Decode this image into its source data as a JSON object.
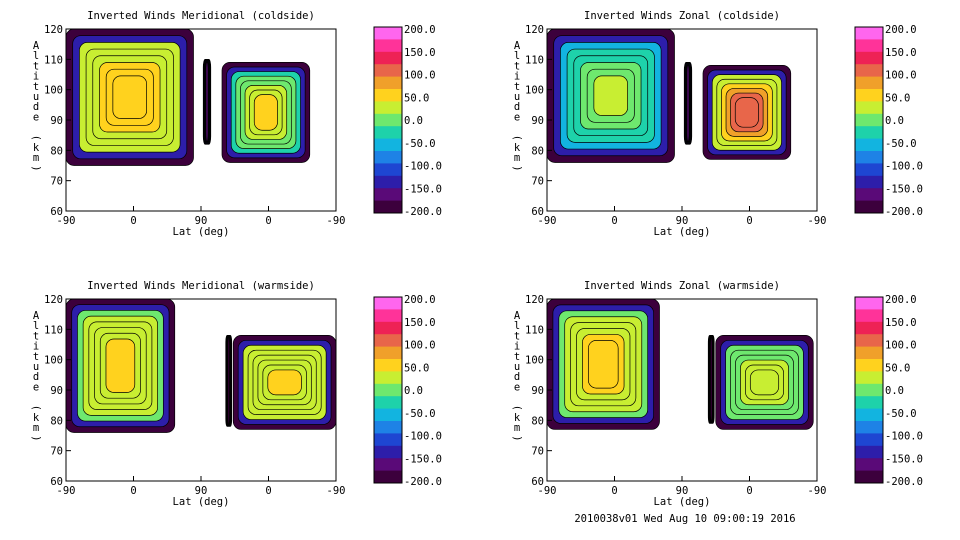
{
  "footer": "2010038v01 Wed Aug 10 09:00:19 2016",
  "colorbar": {
    "ticks": [
      "200.0",
      "150.0",
      "100.0",
      "50.0",
      "0.0",
      "-50.0",
      "-100.0",
      "-150.0",
      "-200.0"
    ],
    "colors": [
      "#ff66ee",
      "#ff3399",
      "#ee2255",
      "#e8664a",
      "#f0a02a",
      "#ffd21e",
      "#c8ee32",
      "#6ee86e",
      "#1ed2aa",
      "#12b4e0",
      "#1e82e6",
      "#1e46d2",
      "#2d1eaa",
      "#5a0a78",
      "#3c003c"
    ]
  },
  "chart_data": [
    {
      "type": "heatmap",
      "title": "Inverted Winds Meridional (coldside)",
      "xlabel": "Lat (deg)",
      "ylabel": "Altitude (km)",
      "xticks": [
        "-90",
        "0",
        "90",
        "0",
        "-90"
      ],
      "yticks": [
        "120",
        "110",
        "100",
        "90",
        "80",
        "70",
        "60"
      ],
      "ylim": [
        60,
        120
      ],
      "zlim": [
        -200,
        200
      ],
      "regions": [
        {
          "x": [
            -90,
            80
          ],
          "y": [
            75,
            120
          ],
          "fill": 20,
          "feature": 60
        },
        {
          "x": [
            93,
            103
          ],
          "y": [
            82,
            110
          ],
          "fill": -120,
          "feature": -160
        },
        {
          "x": [
            118,
            235
          ],
          "y": [
            76,
            109
          ],
          "fill": -40,
          "feature": 60
        }
      ]
    },
    {
      "type": "heatmap",
      "title": "Inverted Winds Zonal (coldside)",
      "xlabel": "Lat (deg)",
      "ylabel": "Altitude (km)",
      "xticks": [
        "-90",
        "0",
        "90",
        "0",
        "-90"
      ],
      "yticks": [
        "120",
        "110",
        "100",
        "90",
        "80",
        "70",
        "60"
      ],
      "ylim": [
        60,
        120
      ],
      "zlim": [
        -200,
        200
      ],
      "regions": [
        {
          "x": [
            -90,
            80
          ],
          "y": [
            76,
            120
          ],
          "fill": -70,
          "feature": 40
        },
        {
          "x": [
            93,
            103
          ],
          "y": [
            82,
            109
          ],
          "fill": -110,
          "feature": -160
        },
        {
          "x": [
            118,
            235
          ],
          "y": [
            77,
            108
          ],
          "fill": -20,
          "feature": 140
        }
      ]
    },
    {
      "type": "heatmap",
      "title": "Inverted Winds Meridional (warmside)",
      "xlabel": "Lat (deg)",
      "ylabel": "Altitude (km)",
      "xticks": [
        "-90",
        "0",
        "90",
        "0",
        "-90"
      ],
      "yticks": [
        "120",
        "110",
        "100",
        "90",
        "80",
        "70",
        "60"
      ],
      "ylim": [
        60,
        120
      ],
      "zlim": [
        -200,
        200
      ],
      "regions": [
        {
          "x": [
            -90,
            55
          ],
          "y": [
            76,
            120
          ],
          "fill": 0,
          "feature": 50
        },
        {
          "x": [
            123,
            131
          ],
          "y": [
            78,
            108
          ],
          "fill": -170,
          "feature": -200
        },
        {
          "x": [
            133,
            270
          ],
          "y": [
            77,
            108
          ],
          "fill": 10,
          "feature": 50
        }
      ]
    },
    {
      "type": "heatmap",
      "title": "Inverted Winds Zonal (warmside)",
      "xlabel": "Lat (deg)",
      "ylabel": "Altitude (km)",
      "xticks": [
        "-90",
        "0",
        "90",
        "0",
        "-90"
      ],
      "yticks": [
        "120",
        "110",
        "100",
        "90",
        "80",
        "70",
        "60"
      ],
      "ylim": [
        60,
        120
      ],
      "zlim": [
        -200,
        200
      ],
      "regions": [
        {
          "x": [
            -90,
            60
          ],
          "y": [
            77,
            120
          ],
          "fill": -10,
          "feature": 60
        },
        {
          "x": [
            125,
            133
          ],
          "y": [
            79,
            108
          ],
          "fill": -180,
          "feature": -200
        },
        {
          "x": [
            135,
            265
          ],
          "y": [
            77,
            108
          ],
          "fill": -20,
          "feature": 40
        }
      ]
    }
  ]
}
